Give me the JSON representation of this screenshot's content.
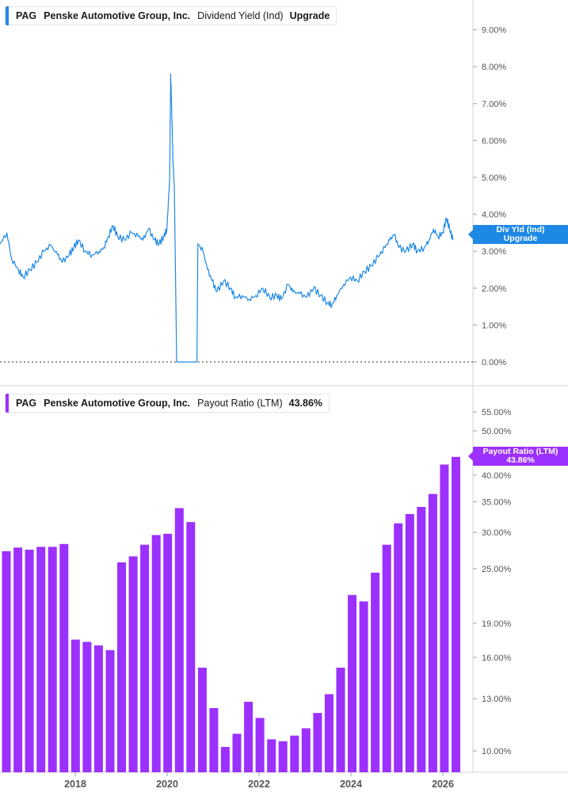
{
  "ticker": "PAG",
  "company": "Penske Automotive Group, Inc.",
  "colors": {
    "yield": "#1e88e5",
    "payout": "#9b30ff",
    "axis": "#d0d4d9",
    "text": "#555555"
  },
  "top_legend": {
    "metric": "Dividend Yield (Ind)",
    "extra": "Upgrade"
  },
  "top_flag": {
    "line1": "Div Yld (Ind)",
    "line2": "Upgrade"
  },
  "bottom_legend": {
    "metric": "Payout Ratio (LTM)",
    "extra": "43.86%"
  },
  "bottom_flag": {
    "line1": "Payout Ratio (LTM)",
    "line2": "43.86%"
  },
  "chart_data": [
    {
      "type": "line",
      "series": [
        {
          "name": "Dividend Yield (Ind)",
          "points": [
            [
              2016.5,
              3.2
            ],
            [
              2016.65,
              3.5
            ],
            [
              2016.75,
              2.8
            ],
            [
              2016.9,
              2.5
            ],
            [
              2017.0,
              2.3
            ],
            [
              2017.15,
              2.5
            ],
            [
              2017.3,
              2.7
            ],
            [
              2017.45,
              3.0
            ],
            [
              2017.6,
              3.15
            ],
            [
              2017.75,
              2.9
            ],
            [
              2017.85,
              2.7
            ],
            [
              2018.0,
              2.9
            ],
            [
              2018.1,
              3.1
            ],
            [
              2018.2,
              3.3
            ],
            [
              2018.35,
              3.0
            ],
            [
              2018.5,
              2.9
            ],
            [
              2018.65,
              3.0
            ],
            [
              2018.75,
              3.1
            ],
            [
              2018.85,
              3.4
            ],
            [
              2018.95,
              3.7
            ],
            [
              2019.05,
              3.4
            ],
            [
              2019.2,
              3.3
            ],
            [
              2019.35,
              3.5
            ],
            [
              2019.5,
              3.4
            ],
            [
              2019.6,
              3.3
            ],
            [
              2019.72,
              3.6
            ],
            [
              2019.85,
              3.3
            ],
            [
              2019.95,
              3.2
            ],
            [
              2020.05,
              3.4
            ],
            [
              2020.12,
              3.6
            ],
            [
              2020.18,
              5.0
            ],
            [
              2020.2,
              7.8
            ],
            [
              2020.22,
              7.0
            ],
            [
              2020.25,
              5.5
            ],
            [
              2020.28,
              4.7
            ],
            [
              2020.33,
              0.0
            ],
            [
              2020.77,
              0.0
            ],
            [
              2020.79,
              3.2
            ],
            [
              2020.9,
              3.0
            ],
            [
              2021.0,
              2.5
            ],
            [
              2021.1,
              2.2
            ],
            [
              2021.2,
              1.9
            ],
            [
              2021.35,
              2.2
            ],
            [
              2021.5,
              2.0
            ],
            [
              2021.6,
              1.75
            ],
            [
              2021.75,
              1.8
            ],
            [
              2021.9,
              1.7
            ],
            [
              2022.05,
              1.8
            ],
            [
              2022.2,
              2.0
            ],
            [
              2022.35,
              1.75
            ],
            [
              2022.5,
              1.8
            ],
            [
              2022.6,
              1.7
            ],
            [
              2022.75,
              2.1
            ],
            [
              2022.85,
              1.9
            ],
            [
              2023.0,
              1.85
            ],
            [
              2023.15,
              1.75
            ],
            [
              2023.3,
              2.0
            ],
            [
              2023.45,
              1.8
            ],
            [
              2023.6,
              1.6
            ],
            [
              2023.7,
              1.55
            ],
            [
              2023.8,
              1.8
            ],
            [
              2023.95,
              2.1
            ],
            [
              2024.1,
              2.3
            ],
            [
              2024.25,
              2.2
            ],
            [
              2024.4,
              2.45
            ],
            [
              2024.55,
              2.6
            ],
            [
              2024.7,
              2.85
            ],
            [
              2024.85,
              3.1
            ],
            [
              2024.95,
              3.3
            ],
            [
              2025.05,
              3.45
            ],
            [
              2025.15,
              3.1
            ],
            [
              2025.3,
              3.0
            ],
            [
              2025.45,
              3.2
            ],
            [
              2025.55,
              3.0
            ],
            [
              2025.7,
              3.1
            ],
            [
              2025.8,
              3.3
            ],
            [
              2025.9,
              3.6
            ],
            [
              2026.0,
              3.4
            ],
            [
              2026.1,
              3.5
            ],
            [
              2026.18,
              3.9
            ],
            [
              2026.25,
              3.6
            ],
            [
              2026.32,
              3.3
            ]
          ]
        }
      ],
      "y_ticks": [
        "0.00%",
        "1.00%",
        "2.00%",
        "3.00%",
        "4.00%",
        "5.00%",
        "6.00%",
        "7.00%",
        "8.00%",
        "9.00%"
      ],
      "ylim": [
        0,
        9.5
      ],
      "xlim": [
        2016.5,
        2026.6
      ],
      "grid": false
    },
    {
      "type": "bar",
      "y_scale": "log",
      "series": [
        {
          "name": "Payout Ratio (LTM)",
          "values": [
            27.3,
            27.8,
            27.5,
            27.9,
            27.9,
            28.3,
            17.5,
            17.3,
            17.0,
            16.6,
            25.8,
            26.6,
            28.2,
            29.6,
            29.8,
            33.9,
            31.6,
            15.2,
            12.4,
            10.2,
            10.9,
            12.8,
            11.8,
            10.6,
            10.5,
            10.8,
            11.2,
            12.1,
            13.3,
            15.2,
            21.9,
            21.2,
            24.5,
            28.2,
            31.4,
            32.9,
            34.1,
            36.4,
            42.2,
            43.86
          ]
        }
      ],
      "y_ticks": [
        "10.00%",
        "13.00%",
        "16.00%",
        "19.00%",
        "25.00%",
        "30.00%",
        "35.00%",
        "40.00%",
        "50.00%",
        "55.00%"
      ],
      "y_tick_values": [
        10,
        13,
        16,
        19,
        25,
        30,
        35,
        40,
        50,
        55
      ],
      "ylim": [
        9.1,
        58
      ],
      "x_tick_labels": [
        "2018",
        "2020",
        "2022",
        "2024",
        "2026"
      ],
      "x_tick_values": [
        2018,
        2020,
        2022,
        2024,
        2026
      ],
      "grid": false
    }
  ]
}
